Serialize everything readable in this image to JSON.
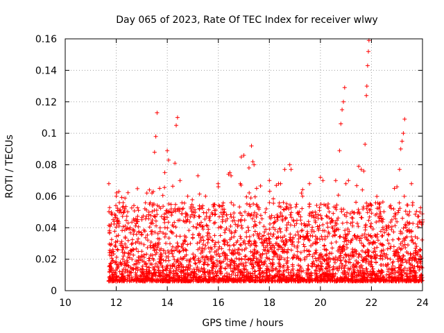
{
  "chart_data": {
    "type": "scatter",
    "title": "Day 065 of 2023, Rate Of TEC Index for receiver wlwy",
    "xlabel": "GPS time / hours",
    "ylabel": "ROTI / TECUs",
    "xlim": [
      10,
      24
    ],
    "ylim": [
      0,
      0.16
    ],
    "x_ticks": [
      "10",
      "12",
      "14",
      "16",
      "18",
      "20",
      "22",
      "24"
    ],
    "y_ticks": [
      "0",
      "0.02",
      "0.04",
      "0.06",
      "0.08",
      "0.1",
      "0.12",
      "0.14",
      "0.16"
    ],
    "grid": true,
    "marker": "+",
    "colors": {
      "points": "#ff0000",
      "grid": "#a0a0a0",
      "axes": "#000000"
    },
    "series": [
      {
        "name": "ROTI",
        "note": "dense cloud of points from ~11.7 h to 24 h, mostly 0.005-0.04 TECUs; listed values are visible peaks",
        "start_hour": 11.7,
        "end_hour": 24,
        "x": [
          12.0,
          12.1,
          12.3,
          13.2,
          13.3,
          13.4,
          13.45,
          13.5,
          13.55,
          13.6,
          13.7,
          13.9,
          14.0,
          14.05,
          14.3,
          14.35,
          14.4,
          14.5,
          14.8,
          15.2,
          15.5,
          16.0,
          16.4,
          16.45,
          16.5,
          16.9,
          17.0,
          17.2,
          17.3,
          17.35,
          17.4,
          17.5,
          18.0,
          18.6,
          18.8,
          18.85,
          19.3,
          20.0,
          20.1,
          20.6,
          20.75,
          20.8,
          20.85,
          20.9,
          20.95,
          21.0,
          21.1,
          21.5,
          21.6,
          21.7,
          21.75,
          21.8,
          21.82,
          21.85,
          21.88,
          21.9,
          22.3,
          22.8,
          22.9,
          23.0,
          23.1,
          23.15,
          23.2,
          23.25,
          23.3,
          23.9,
          24.0
        ],
        "y": [
          0.06,
          0.063,
          0.05,
          0.062,
          0.064,
          0.062,
          0.063,
          0.088,
          0.098,
          0.113,
          0.065,
          0.075,
          0.089,
          0.083,
          0.081,
          0.105,
          0.11,
          0.07,
          0.06,
          0.073,
          0.06,
          0.066,
          0.074,
          0.075,
          0.073,
          0.085,
          0.086,
          0.078,
          0.092,
          0.082,
          0.08,
          0.065,
          0.07,
          0.077,
          0.08,
          0.077,
          0.06,
          0.072,
          0.07,
          0.07,
          0.089,
          0.106,
          0.115,
          0.12,
          0.129,
          0.068,
          0.07,
          0.079,
          0.077,
          0.076,
          0.093,
          0.124,
          0.13,
          0.143,
          0.152,
          0.159,
          0.055,
          0.045,
          0.065,
          0.066,
          0.077,
          0.09,
          0.095,
          0.1,
          0.109,
          0.05,
          0.045
        ]
      }
    ]
  }
}
